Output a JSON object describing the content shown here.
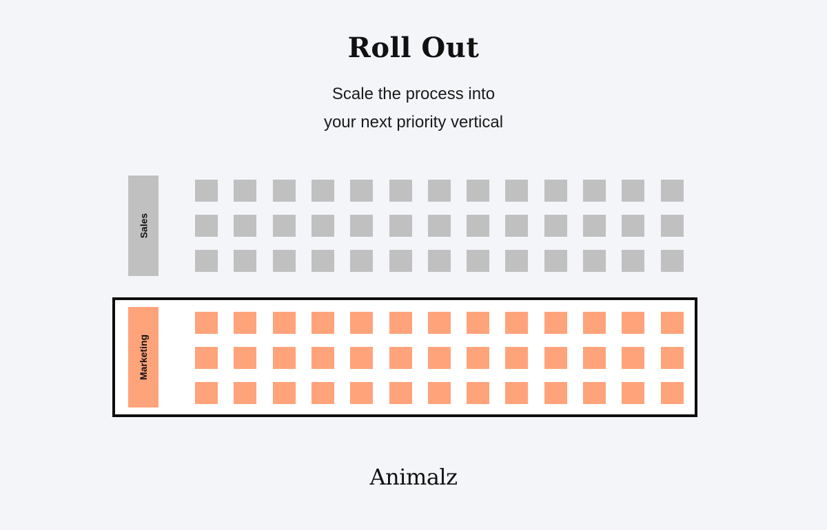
{
  "header": {
    "title": "Roll Out",
    "subtitle_line1": "Scale the process into",
    "subtitle_line2": "your next priority vertical"
  },
  "rows": [
    {
      "label": "Sales",
      "color": "#c0c0c0",
      "highlighted": false,
      "grid_rows": 3,
      "grid_cols": 13
    },
    {
      "label": "Marketing",
      "color": "#ffa37b",
      "highlighted": true,
      "grid_rows": 3,
      "grid_cols": 13
    }
  ],
  "footer": {
    "logo_text": "Animalz"
  }
}
